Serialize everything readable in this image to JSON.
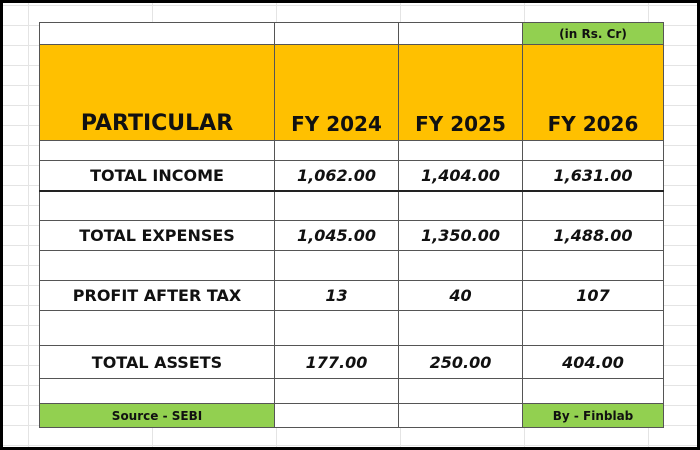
{
  "note": "(in Rs. Cr)",
  "header": [
    "PARTICULAR",
    "FY 2024",
    "FY 2025",
    "FY 2026"
  ],
  "rows": [
    {
      "label": "TOTAL INCOME",
      "values": [
        "1,062.00",
        "1,404.00",
        "1,631.00"
      ]
    },
    {
      "label": "TOTAL EXPENSES",
      "values": [
        "1,045.00",
        "1,350.00",
        "1,488.00"
      ]
    },
    {
      "label": "PROFIT AFTER TAX",
      "values": [
        "13",
        "40",
        "107"
      ]
    },
    {
      "label": "TOTAL ASSETS",
      "values": [
        "177.00",
        "250.00",
        "404.00"
      ]
    }
  ],
  "footer": {
    "source": "Source - SEBI",
    "by": "By - Finblab"
  }
}
